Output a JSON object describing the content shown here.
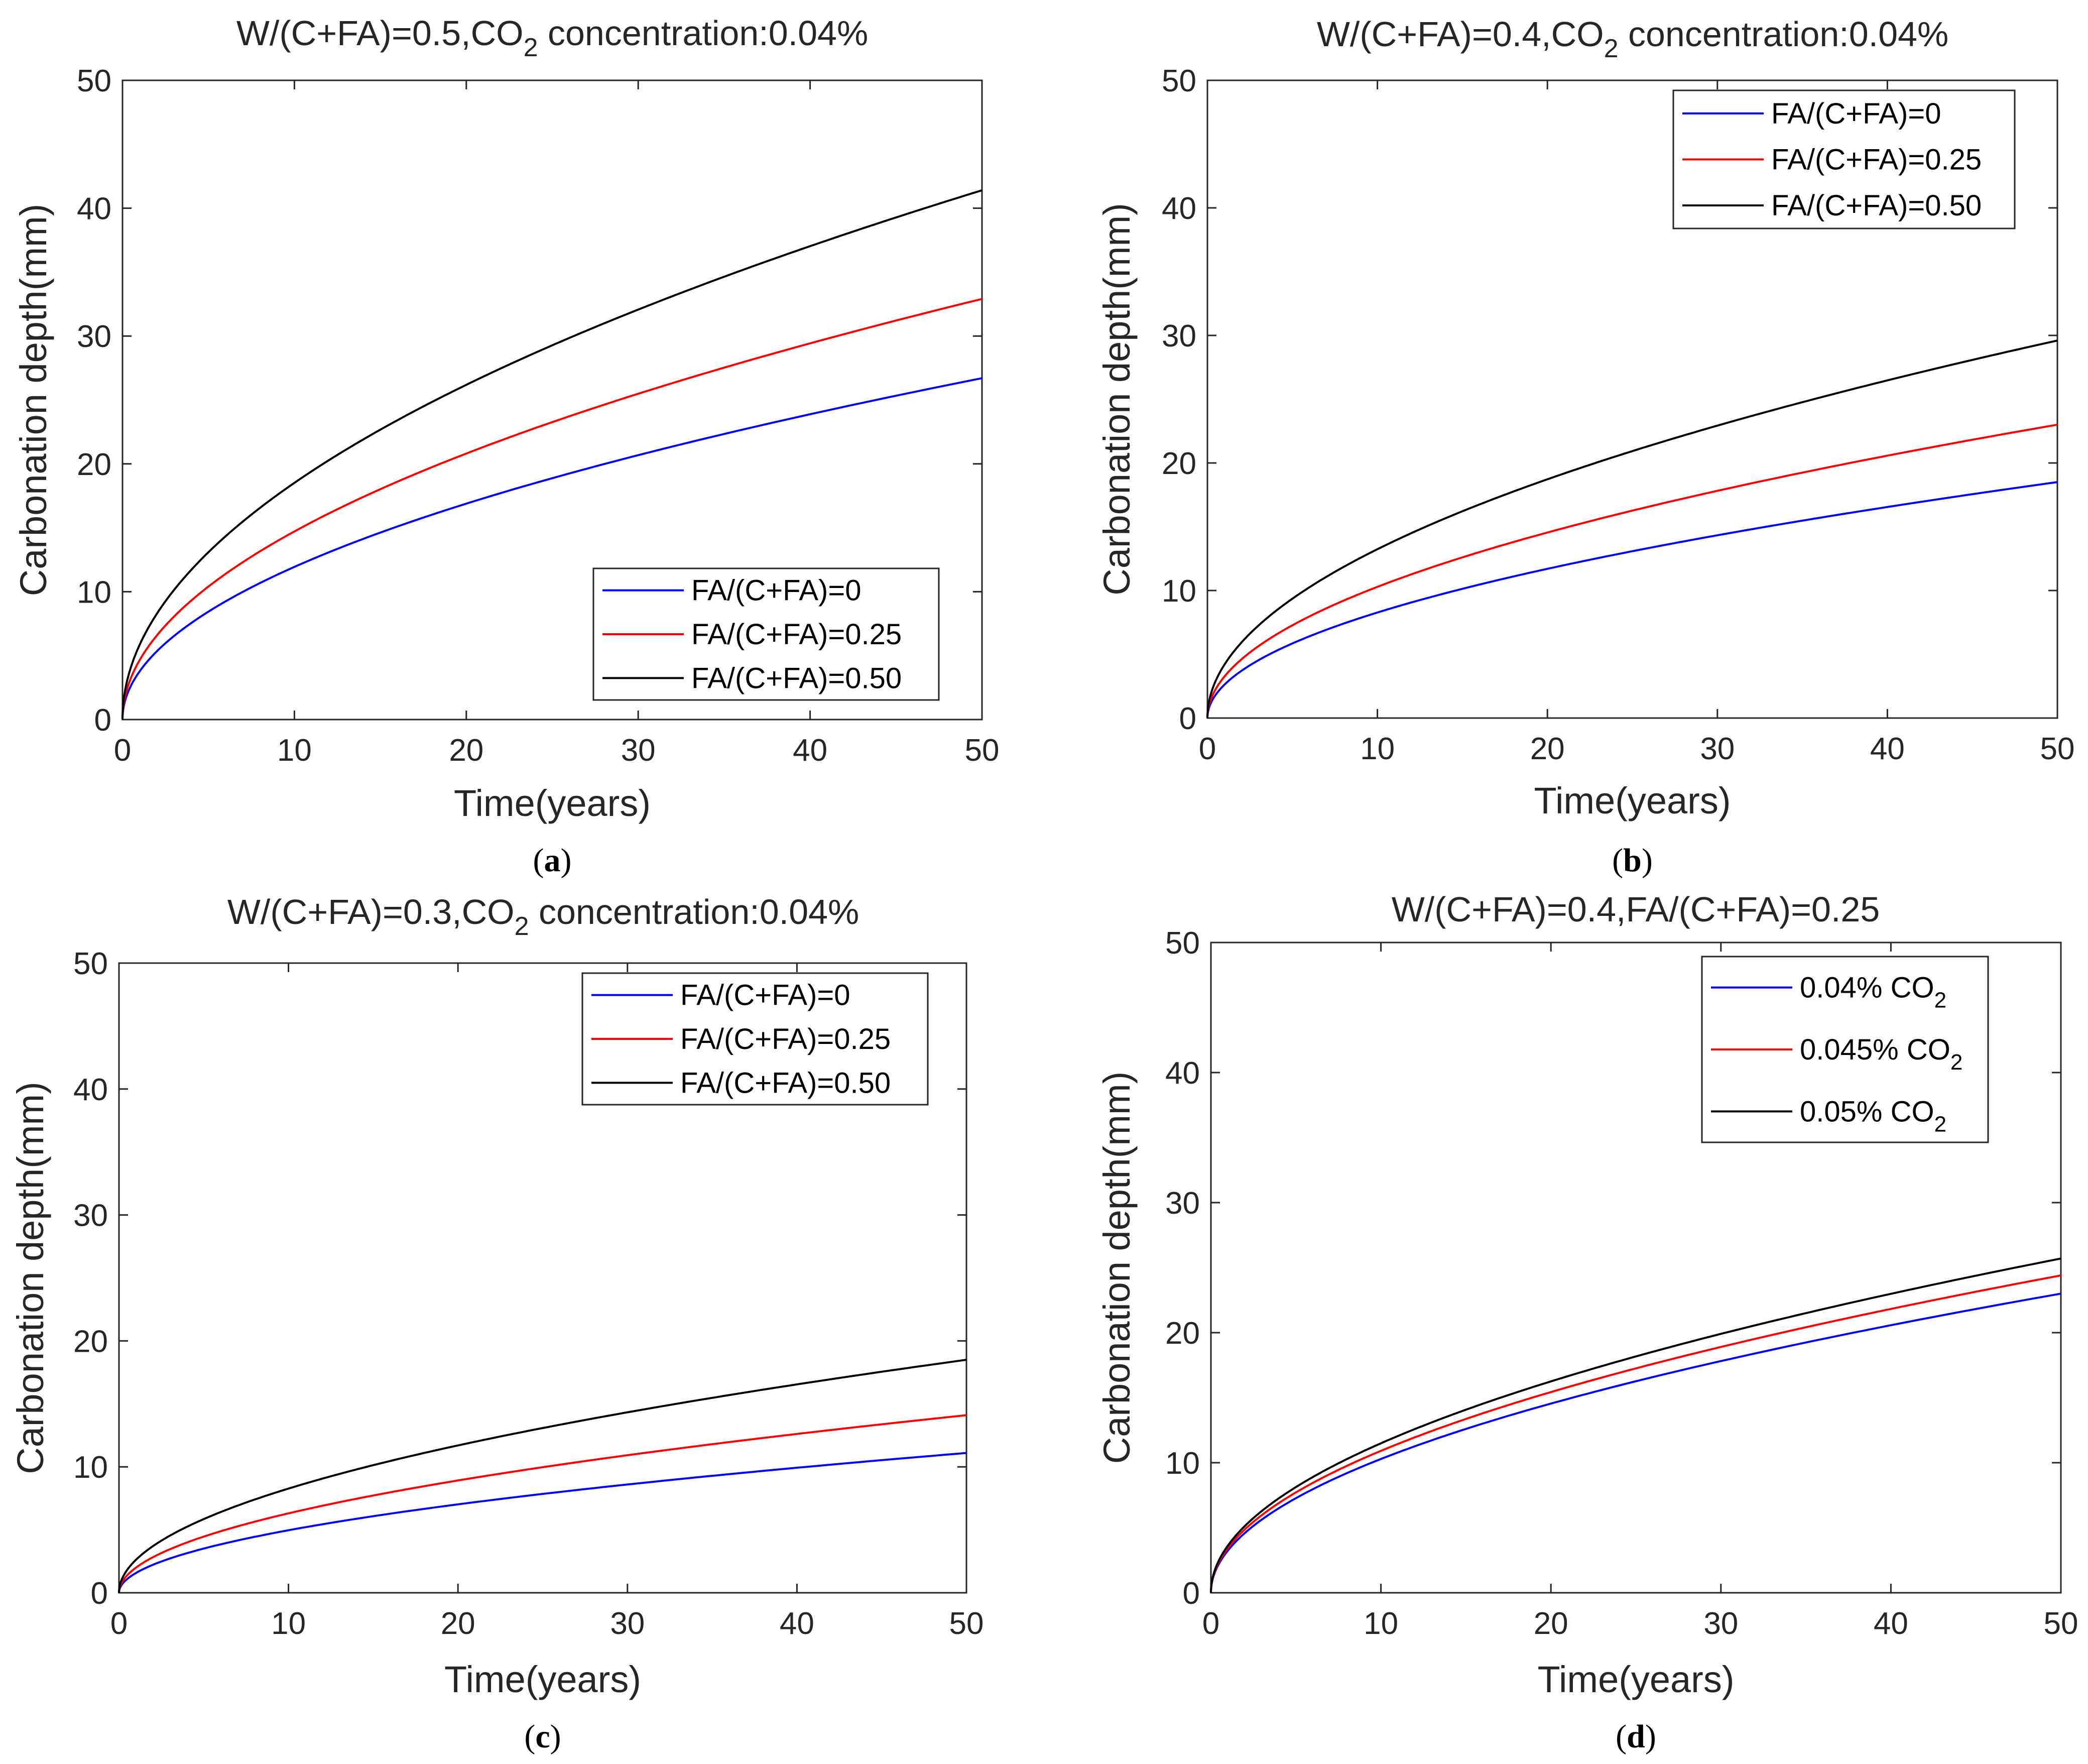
{
  "chart_data": [
    {
      "type": "line",
      "panel": "a",
      "caption": {
        "open": "(",
        "letter": "a",
        "close": ")"
      },
      "title": {
        "prefix": "W/(C+FA)=0.5,CO",
        "subscript": "2",
        "suffix": " concentration:0.04%"
      },
      "xlabel": "Time(years)",
      "ylabel": "Carbonation depth(mm)",
      "xlim": [
        0,
        50
      ],
      "ylim": [
        0,
        50
      ],
      "xticks": [
        0,
        10,
        20,
        30,
        40,
        50
      ],
      "yticks": [
        0,
        10,
        20,
        30,
        40,
        50
      ],
      "legend_position": "lower-right",
      "series": [
        {
          "name": "FA/(C+FA)=0",
          "color": "#0000ff",
          "final_value": 26.7,
          "model": "k*sqrt(t)"
        },
        {
          "name": "FA/(C+FA)=0.25",
          "color": "#ff0000",
          "final_value": 32.9,
          "model": "k*sqrt(t)"
        },
        {
          "name": "FA/(C+FA)=0.50",
          "color": "#000000",
          "final_value": 41.4,
          "model": "k*sqrt(t)"
        }
      ]
    },
    {
      "type": "line",
      "panel": "b",
      "caption": {
        "open": "(",
        "letter": "b",
        "close": ")"
      },
      "title": {
        "prefix": "W/(C+FA)=0.4,CO",
        "subscript": "2",
        "suffix": " concentration:0.04%"
      },
      "xlabel": "Time(years)",
      "ylabel": "Carbonation depth(mm)",
      "xlim": [
        0,
        50
      ],
      "ylim": [
        0,
        50
      ],
      "xticks": [
        0,
        10,
        20,
        30,
        40,
        50
      ],
      "yticks": [
        0,
        10,
        20,
        30,
        40,
        50
      ],
      "legend_position": "top-right",
      "series": [
        {
          "name": "FA/(C+FA)=0",
          "color": "#0000ff",
          "final_value": 18.5,
          "model": "k*sqrt(t)"
        },
        {
          "name": "FA/(C+FA)=0.25",
          "color": "#ff0000",
          "final_value": 23.0,
          "model": "k*sqrt(t)"
        },
        {
          "name": "FA/(C+FA)=0.50",
          "color": "#000000",
          "final_value": 29.6,
          "model": "k*sqrt(t)"
        }
      ]
    },
    {
      "type": "line",
      "panel": "c",
      "caption": {
        "open": "(",
        "letter": "c",
        "close": ")"
      },
      "title": {
        "prefix": "W/(C+FA)=0.3,CO",
        "subscript": "2",
        "suffix": " concentration:0.04%"
      },
      "xlabel": "Time(years)",
      "ylabel": "Carbonation depth(mm)",
      "xlim": [
        0,
        50
      ],
      "ylim": [
        0,
        50
      ],
      "xticks": [
        0,
        10,
        20,
        30,
        40,
        50
      ],
      "yticks": [
        0,
        10,
        20,
        30,
        40,
        50
      ],
      "legend_position": "top-right",
      "series": [
        {
          "name": "FA/(C+FA)=0",
          "color": "#0000ff",
          "final_value": 11.1,
          "model": "k*sqrt(t)"
        },
        {
          "name": "FA/(C+FA)=0.25",
          "color": "#ff0000",
          "final_value": 14.1,
          "model": "k*sqrt(t)"
        },
        {
          "name": "FA/(C+FA)=0.50",
          "color": "#000000",
          "final_value": 18.5,
          "model": "k*sqrt(t)"
        }
      ]
    },
    {
      "type": "line",
      "panel": "d",
      "caption": {
        "open": "(",
        "letter": "d",
        "close": ")"
      },
      "title": {
        "prefix": "W/(C+FA)=0.4,FA/(C+FA)=0.25",
        "subscript": "",
        "suffix": ""
      },
      "xlabel": "Time(years)",
      "ylabel": "Carbonation depth(mm)",
      "xlim": [
        0,
        50
      ],
      "ylim": [
        0,
        50
      ],
      "xticks": [
        0,
        10,
        20,
        30,
        40,
        50
      ],
      "yticks": [
        0,
        10,
        20,
        30,
        40,
        50
      ],
      "legend_position": "top-right",
      "series": [
        {
          "name": "0.04% CO",
          "name_sub": "2",
          "color": "#0000ff",
          "final_value": 23.0,
          "model": "k*sqrt(t)"
        },
        {
          "name": "0.045% CO",
          "name_sub": "2",
          "color": "#ff0000",
          "final_value": 24.4,
          "model": "k*sqrt(t)"
        },
        {
          "name": "0.05% CO",
          "name_sub": "2",
          "color": "#000000",
          "final_value": 25.7,
          "model": "k*sqrt(t)"
        }
      ]
    }
  ]
}
